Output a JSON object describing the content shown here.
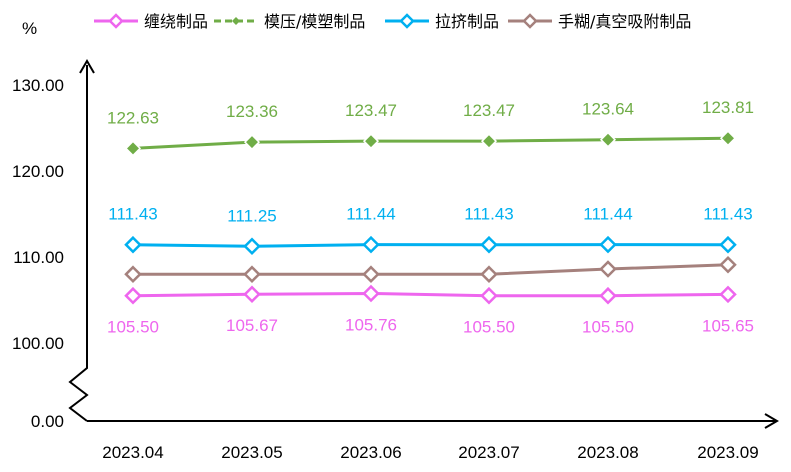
{
  "chart_data": {
    "type": "line",
    "ylabel": "%",
    "categories": [
      "2023.04",
      "2023.05",
      "2023.06",
      "2023.07",
      "2023.08",
      "2023.09"
    ],
    "yticks": [
      "0.00",
      "100.00",
      "110.00",
      "120.00",
      "130.00"
    ],
    "ylim": [
      100,
      130
    ],
    "axis_break": true,
    "legend_position": "top",
    "series": [
      {
        "name": "缠绕制品",
        "values": [
          105.5,
          105.67,
          105.76,
          105.5,
          105.5,
          105.65
        ],
        "labels": [
          "105.50",
          "105.67",
          "105.76",
          "105.50",
          "105.50",
          "105.65"
        ],
        "marker": "hollow-diamond",
        "color": "#EE66EE",
        "label_position": "below"
      },
      {
        "name": "模压/模塑制品",
        "values": [
          122.63,
          123.36,
          123.47,
          123.47,
          123.64,
          123.81
        ],
        "labels": [
          "122.63",
          "123.36",
          "123.47",
          "123.47",
          "123.64",
          "123.81"
        ],
        "marker": "solid-diamond",
        "color": "#70AD47",
        "label_position": "above"
      },
      {
        "name": "拉挤制品",
        "values": [
          111.43,
          111.25,
          111.44,
          111.43,
          111.44,
          111.43
        ],
        "labels": [
          "111.43",
          "111.25",
          "111.44",
          "111.43",
          "111.44",
          "111.43"
        ],
        "marker": "hollow-diamond",
        "color": "#00B0F0",
        "label_position": "above"
      },
      {
        "name": "手糊/真空吸附制品",
        "values": [
          108.0,
          108.0,
          108.0,
          108.0,
          108.6,
          109.1
        ],
        "labels": [],
        "marker": "hollow-diamond",
        "color": "#A5817D",
        "label_position": "none"
      }
    ]
  }
}
